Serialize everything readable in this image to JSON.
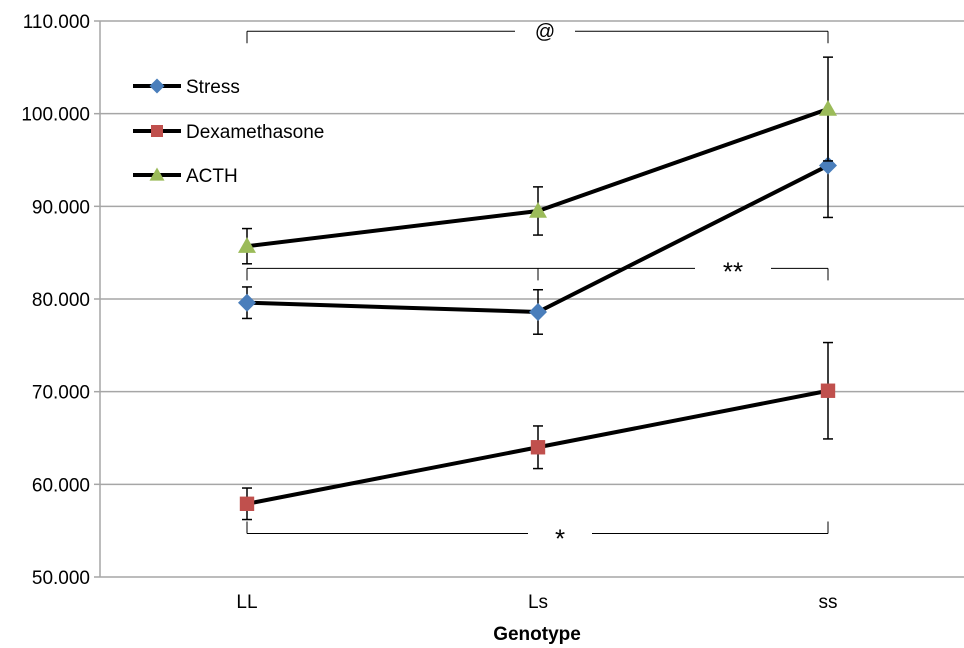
{
  "chart_data": {
    "type": "line",
    "title": "",
    "xlabel": "Genotype",
    "ylabel": "",
    "categories": [
      "LL",
      "Ls",
      "ss"
    ],
    "ylim": [
      50,
      110
    ],
    "yticks": [
      50,
      60,
      70,
      80,
      90,
      100,
      110
    ],
    "ytick_labels": [
      "50.000",
      "60.000",
      "70.000",
      "80.000",
      "90.000",
      "100.000",
      "110.000"
    ],
    "grid": "horizontal",
    "legend_position": "top-left",
    "series": [
      {
        "name": "Stress",
        "values": [
          79.6,
          78.6,
          94.4
        ],
        "errors": [
          1.7,
          2.4,
          5.6
        ],
        "marker": "diamond",
        "color": "#4a7ebb"
      },
      {
        "name": "Dexamethasone",
        "values": [
          57.9,
          64.0,
          70.1
        ],
        "errors": [
          1.7,
          2.3,
          5.2
        ],
        "marker": "square",
        "color": "#c0504d"
      },
      {
        "name": "ACTH",
        "values": [
          85.7,
          89.5,
          100.5
        ],
        "errors": [
          1.9,
          2.6,
          5.6
        ],
        "marker": "triangle",
        "color": "#9bbb59"
      }
    ],
    "significance": [
      {
        "label": "@",
        "from": "LL",
        "to": "ss",
        "y": 108.9
      },
      {
        "label": "**",
        "from": "LL",
        "to": "ss",
        "y": 83.3
      },
      {
        "label": "*",
        "from": "LL",
        "to": "ss",
        "y": 54.7
      }
    ]
  }
}
